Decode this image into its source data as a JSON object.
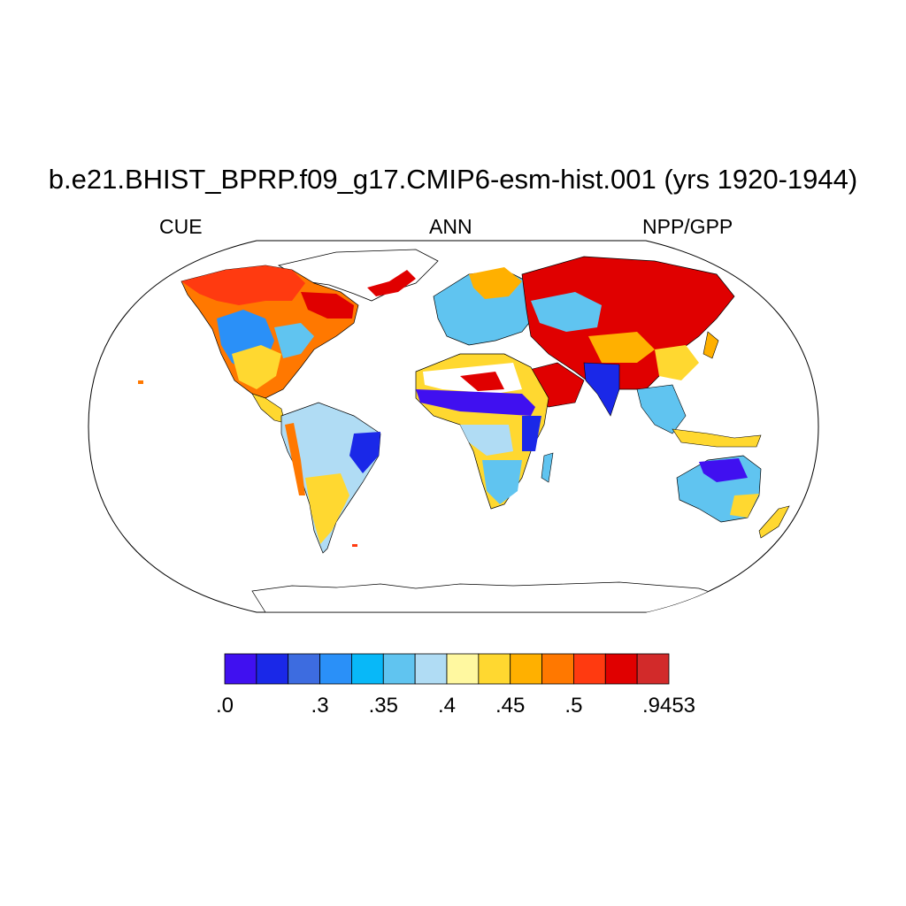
{
  "title": "b.e21.BHIST_BPRP.f09_g17.CMIP6-esm-hist.001 (yrs 1920-1944)",
  "left_label": "CUE",
  "center_label": "ANN",
  "right_label": "NPP/GPP",
  "colorbar": {
    "colors": [
      "#4010f0",
      "#1a28e8",
      "#3d6ce0",
      "#2a90f8",
      "#08b8f8",
      "#60c4f0",
      "#b0dcf4",
      "#fff8a0",
      "#ffd830",
      "#ffb000",
      "#ff7800",
      "#ff3a10",
      "#e00000",
      "#d22a2a"
    ],
    "tick_labels": [
      ".0",
      ".3",
      ".35",
      ".4",
      ".45",
      ".5",
      ".9453"
    ]
  },
  "legend_colors": {
    "low": "#4010f0",
    "mid_low": "#b0dcf4",
    "mid_high": "#ffd830",
    "high": "#e00000"
  }
}
